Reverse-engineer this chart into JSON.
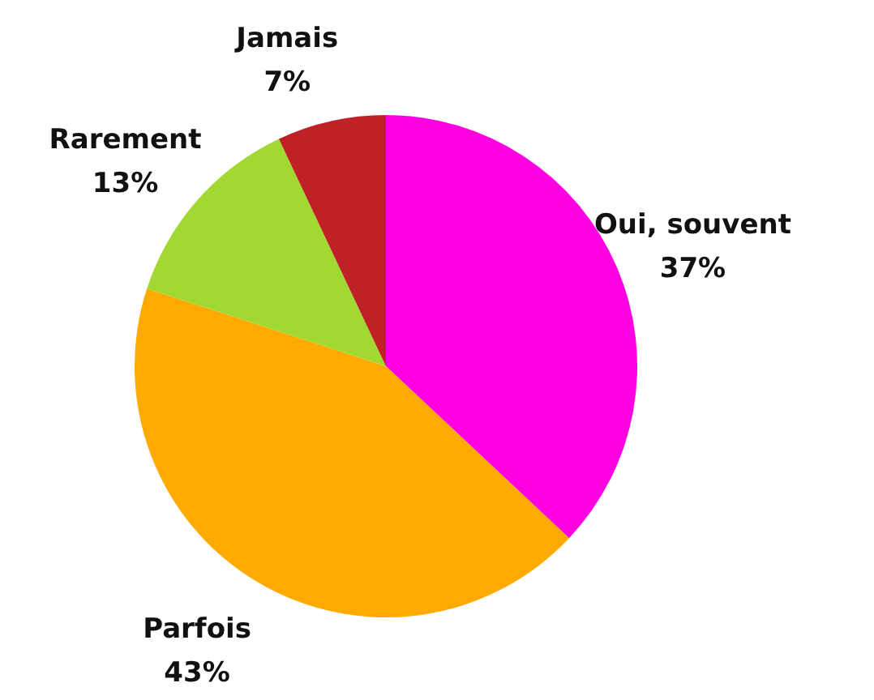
{
  "chart_data": {
    "type": "pie",
    "categories": [
      "Oui, souvent",
      "Parfois",
      "Rarement",
      "Jamais"
    ],
    "values": [
      37,
      43,
      13,
      7
    ],
    "value_labels": [
      "37%",
      "43%",
      "13%",
      "7%"
    ],
    "colors": [
      "#ff00e1",
      "#ffaa00",
      "#a2d832",
      "#c02126"
    ]
  }
}
